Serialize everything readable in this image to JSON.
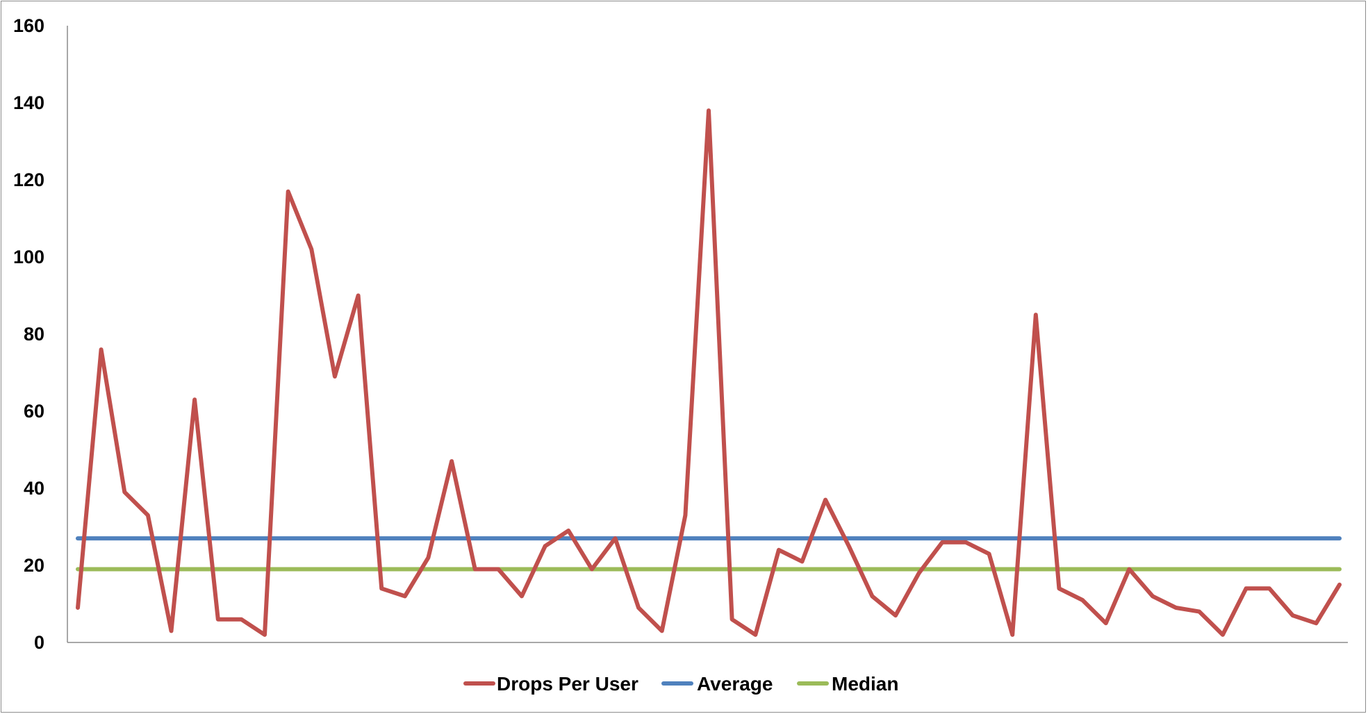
{
  "chart_data": {
    "type": "line",
    "title": "",
    "xlabel": "",
    "ylabel": "",
    "ylim": [
      0,
      160
    ],
    "yticks": [
      0,
      20,
      40,
      60,
      80,
      100,
      120,
      140,
      160
    ],
    "grid": false,
    "legend_position": "bottom",
    "series": [
      {
        "name": "Drops Per User",
        "color": "#c0504d",
        "values": [
          9,
          76,
          39,
          33,
          3,
          63,
          6,
          6,
          2,
          117,
          102,
          69,
          90,
          14,
          12,
          22,
          47,
          19,
          19,
          12,
          25,
          29,
          19,
          27,
          9,
          3,
          33,
          138,
          6,
          2,
          24,
          21,
          37,
          25,
          12,
          7,
          18,
          26,
          26,
          23,
          2,
          85,
          14,
          11,
          5,
          19,
          12,
          9,
          8,
          2,
          14,
          14,
          7,
          5,
          15
        ]
      },
      {
        "name": "Average",
        "color": "#4f81bd",
        "values": [
          27,
          27,
          27,
          27,
          27,
          27,
          27,
          27,
          27,
          27,
          27,
          27,
          27,
          27,
          27,
          27,
          27,
          27,
          27,
          27,
          27,
          27,
          27,
          27,
          27,
          27,
          27,
          27,
          27,
          27,
          27,
          27,
          27,
          27,
          27,
          27,
          27,
          27,
          27,
          27,
          27,
          27,
          27,
          27,
          27,
          27,
          27,
          27,
          27,
          27,
          27,
          27,
          27,
          27,
          27
        ]
      },
      {
        "name": "Median",
        "color": "#9bbb59",
        "values": [
          19,
          19,
          19,
          19,
          19,
          19,
          19,
          19,
          19,
          19,
          19,
          19,
          19,
          19,
          19,
          19,
          19,
          19,
          19,
          19,
          19,
          19,
          19,
          19,
          19,
          19,
          19,
          19,
          19,
          19,
          19,
          19,
          19,
          19,
          19,
          19,
          19,
          19,
          19,
          19,
          19,
          19,
          19,
          19,
          19,
          19,
          19,
          19,
          19,
          19,
          19,
          19,
          19,
          19,
          19
        ]
      }
    ]
  }
}
